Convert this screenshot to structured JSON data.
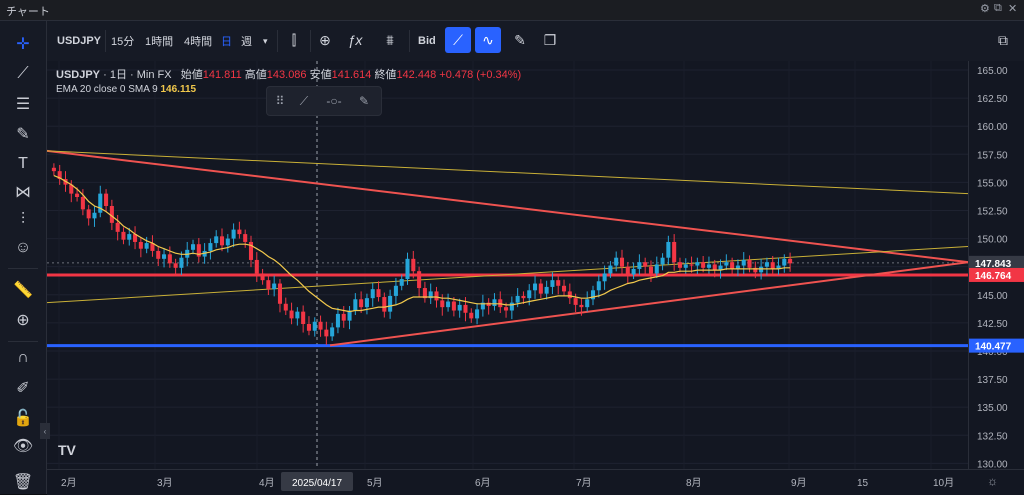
{
  "window": {
    "title": "チャート"
  },
  "toolbar": {
    "symbol": "USDJPY",
    "intervals": [
      "15分",
      "1時間",
      "4時間"
    ],
    "week_label": "週",
    "bid_label": "Bid"
  },
  "legend": {
    "symbol": "USDJPY",
    "timeframe": "1日",
    "source": "Min FX",
    "open_label": "始値",
    "open": "141.811",
    "high_label": "高値",
    "high": "143.086",
    "low_label": "安値",
    "low": "141.614",
    "close_label": "終値",
    "close": "142.448",
    "change": "+0.478 (+0.34%)",
    "ema_label": "EMA 20 close 0 SMA 9",
    "ema_value": "146.115"
  },
  "timeaxis": {
    "crosshair_date": "2025/04/17"
  },
  "colors": {
    "up": "#089981",
    "down": "#f23645",
    "ema": "#f2c94c",
    "blue_line": "#2962ff",
    "trend": "#ef5350"
  },
  "chart_data": {
    "type": "candlestick",
    "symbol": "USDJPY",
    "timeframe": "1日",
    "ylim": [
      129.5,
      165.8
    ],
    "y_ticks": [
      130.0,
      132.5,
      135.0,
      137.5,
      140.0,
      142.5,
      145.0,
      147.5,
      150.0,
      152.5,
      155.0,
      157.5,
      160.0,
      162.5,
      165.0
    ],
    "x_ticks": [
      "2月",
      "3月",
      "4月",
      "5月",
      "6月",
      "7月",
      "8月",
      "9月",
      "15",
      "10月"
    ],
    "price_labels": [
      {
        "value": 147.843,
        "label": "147.843",
        "color": "#363a45",
        "text_color": "#ffffff"
      },
      {
        "value": 146.764,
        "label": "146.764",
        "color": "#f23645",
        "text_color": "#ffffff"
      },
      {
        "value": 140.477,
        "label": "140.477",
        "color": "#2962ff",
        "text_color": "#ffffff"
      }
    ],
    "close_path": [
      156.0,
      155.3,
      154.8,
      154.0,
      153.7,
      152.6,
      151.8,
      152.3,
      154.0,
      152.9,
      151.4,
      150.6,
      149.9,
      150.4,
      149.7,
      149.1,
      149.6,
      148.9,
      148.2,
      148.6,
      147.8,
      147.4,
      148.3,
      149.0,
      149.5,
      148.4,
      148.9,
      149.6,
      150.2,
      149.4,
      150.0,
      150.8,
      150.4,
      149.7,
      148.1,
      146.9,
      146.3,
      145.5,
      146.0,
      144.2,
      143.6,
      142.9,
      143.5,
      142.4,
      141.8,
      142.6,
      141.9,
      141.3,
      142.1,
      143.3,
      142.7,
      143.6,
      144.6,
      143.9,
      144.7,
      145.5,
      144.8,
      143.5,
      144.9,
      145.8,
      146.4,
      148.2,
      147.1,
      145.6,
      144.7,
      145.3,
      144.5,
      143.9,
      144.4,
      143.6,
      144.1,
      143.4,
      142.9,
      143.7,
      144.3,
      144.0,
      144.6,
      143.9,
      143.6,
      144.3,
      144.9,
      144.7,
      145.4,
      146.0,
      145.1,
      145.7,
      146.3,
      145.8,
      145.3,
      144.7,
      144.1,
      143.9,
      144.6,
      145.4,
      146.2,
      146.9,
      147.6,
      148.3,
      147.5,
      146.8,
      147.3,
      147.9,
      147.5,
      146.9,
      147.7,
      148.3,
      149.7,
      147.9,
      147.4,
      147.7,
      147.6,
      147.9,
      147.4,
      147.7,
      147.2,
      147.6,
      147.9,
      147.3,
      147.6,
      148.1,
      147.4,
      147.0,
      147.5,
      147.9,
      147.3,
      147.6,
      148.2,
      147.8
    ],
    "ema_path": [
      155.6,
      155.4,
      155.1,
      154.8,
      154.4,
      153.9,
      153.3,
      152.9,
      152.7,
      152.4,
      152.0,
      151.6,
      151.1,
      150.8,
      150.4,
      150.1,
      149.8,
      149.6,
      149.3,
      149.1,
      148.9,
      148.7,
      148.6,
      148.6,
      148.7,
      148.6,
      148.7,
      148.8,
      149.0,
      149.1,
      149.2,
      149.4,
      149.5,
      149.5,
      149.4,
      149.1,
      148.8,
      148.4,
      148.1,
      147.7,
      147.2,
      146.7,
      146.3,
      145.8,
      145.3,
      144.9,
      144.5,
      144.1,
      143.8,
      143.7,
      143.6,
      143.5,
      143.6,
      143.6,
      143.7,
      143.8,
      143.9,
      143.9,
      144.0,
      144.1,
      144.3,
      144.6,
      144.8,
      144.8,
      144.8,
      144.8,
      144.8,
      144.7,
      144.7,
      144.6,
      144.5,
      144.4,
      144.3,
      144.2,
      144.2,
      144.2,
      144.2,
      144.2,
      144.1,
      144.1,
      144.2,
      144.3,
      144.4,
      144.5,
      144.6,
      144.7,
      144.8,
      144.9,
      144.9,
      144.9,
      144.8,
      144.7,
      144.7,
      144.8,
      144.9,
      145.1,
      145.4,
      145.6,
      145.8,
      146.0,
      146.1,
      146.3,
      146.4,
      146.5,
      146.6,
      146.7,
      147.0,
      147.0,
      147.1,
      147.1,
      147.1,
      147.2,
      147.2,
      147.2,
      147.2,
      147.2,
      147.3,
      147.3,
      147.3,
      147.3,
      147.3,
      147.3,
      147.3,
      147.3,
      147.3,
      147.3,
      147.4,
      147.4
    ],
    "horizontal_lines": [
      {
        "value": 146.764,
        "color": "#f23645"
      },
      {
        "value": 140.477,
        "color": "#2962ff"
      }
    ]
  }
}
